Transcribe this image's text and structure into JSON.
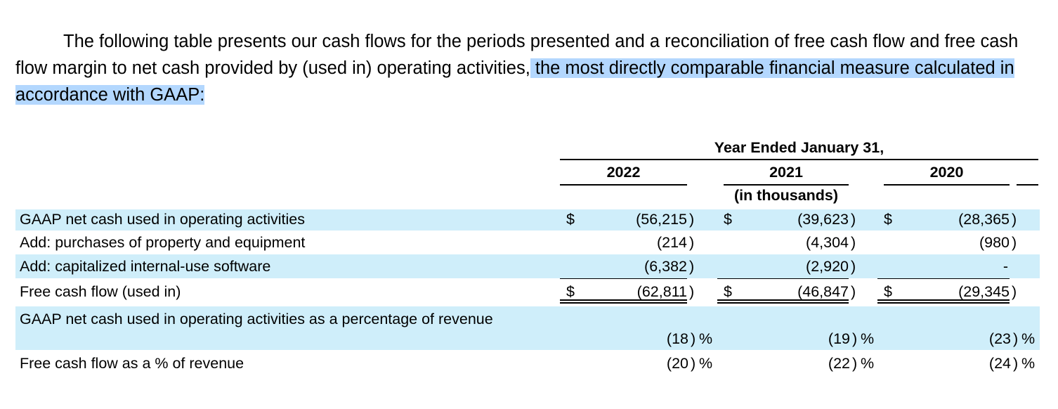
{
  "intro": {
    "text": "The following table presents our cash flows for the periods presented and a reconciliation of free cash flow and free cash flow margin to net cash provided by (used in) operating activities,",
    "highlighted_text": " the most directly comparable financial measure calculated in accordance with GAAP:"
  },
  "table": {
    "period_header": "Year Ended January 31,",
    "years": [
      "2022",
      "2021",
      "2020"
    ],
    "units": "(in thousands)",
    "rows": [
      {
        "label": "GAAP net cash used in operating activities",
        "values": [
          "(56,215",
          "(39,623",
          "(28,365"
        ],
        "currency": "$",
        "suffix": ")",
        "shaded": true
      },
      {
        "label": "Add: purchases of property and equipment",
        "values": [
          "(214",
          "(4,304",
          "(980"
        ],
        "suffix": ")",
        "shaded": false
      },
      {
        "label": "Add: capitalized internal-use software",
        "values": [
          "(6,382",
          "(2,920",
          "-"
        ],
        "suffix": ")",
        "shaded": true
      },
      {
        "label": "Free cash flow (used in)",
        "values": [
          "(62,811",
          "(46,847",
          "(29,345"
        ],
        "currency": "$",
        "suffix": ")",
        "shaded": false
      },
      {
        "label": "GAAP net cash used in operating activities as a percentage of revenue",
        "values": [
          "(18",
          "(19",
          "(23"
        ],
        "suffix": ")",
        "unit": "%",
        "shaded": true
      },
      {
        "label": "Free cash flow as a % of revenue",
        "values": [
          "(20",
          "(22",
          "(24"
        ],
        "suffix": ")",
        "unit": "%",
        "shaded": false
      }
    ]
  },
  "colors": {
    "row_shade": "#cfeefa",
    "selection_highlight": "#b3d7fe"
  }
}
